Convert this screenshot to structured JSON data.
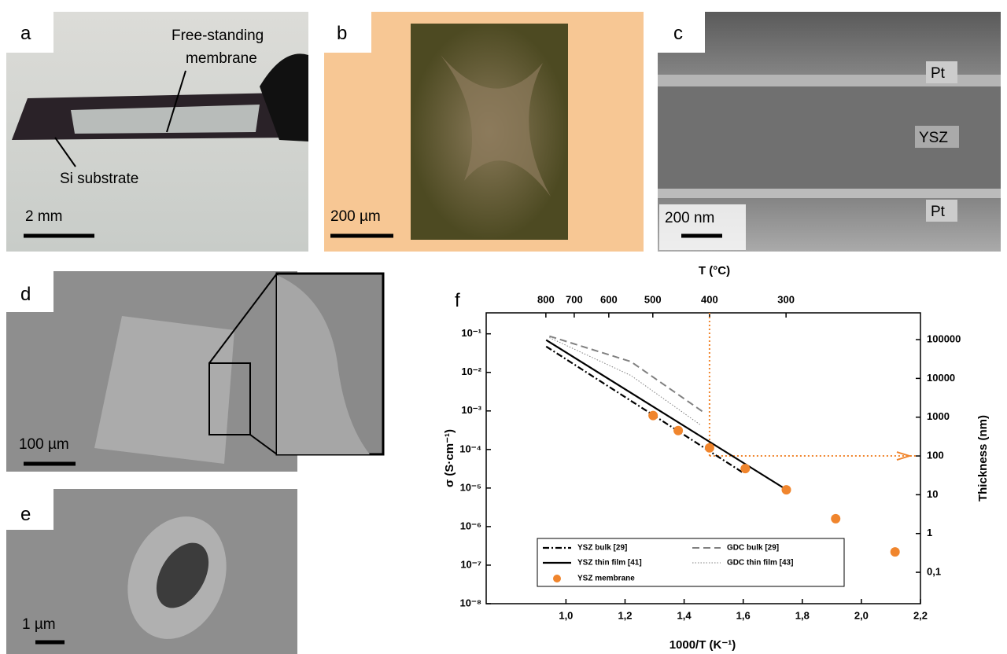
{
  "panels": {
    "a": {
      "label": "a",
      "membrane": [
        "Free-standing",
        "membrane"
      ],
      "substrate": "Si substrate",
      "scale": "2 mm"
    },
    "b": {
      "label": "b",
      "scale": "200 µm"
    },
    "c": {
      "label": "c",
      "top": "Pt",
      "middle": "YSZ",
      "bottom": "Pt",
      "scale": "200 nm"
    },
    "d": {
      "label": "d",
      "scale": "100 µm"
    },
    "e": {
      "label": "e",
      "scale": "1 µm"
    },
    "f": {
      "label": "f"
    }
  },
  "chart_data": {
    "type": "line",
    "xlabel": "1000/T (K⁻¹)",
    "ylabel": "σ (S·cm⁻¹)",
    "y2label": "Thickness (nm)",
    "x2label": "T (°C)",
    "xlim": [
      0.73,
      2.2
    ],
    "xticks": [
      {
        "value": 1.0,
        "label": "1,0"
      },
      {
        "value": 1.2,
        "label": "1,2"
      },
      {
        "value": 1.4,
        "label": "1,4"
      },
      {
        "value": 1.6,
        "label": "1,6"
      },
      {
        "value": 1.8,
        "label": "1,8"
      },
      {
        "value": 2.0,
        "label": "2,0"
      },
      {
        "value": 2.2,
        "label": "2,2"
      }
    ],
    "x2ticks": [
      {
        "value": 0.932,
        "label": "800"
      },
      {
        "value": 1.028,
        "label": "700"
      },
      {
        "value": 1.145,
        "label": "600"
      },
      {
        "value": 1.294,
        "label": "500"
      },
      {
        "value": 1.486,
        "label": "400"
      },
      {
        "value": 1.745,
        "label": "300"
      }
    ],
    "ylog": true,
    "ylim": [
      1e-08,
      0.35
    ],
    "yticks": [
      {
        "value": 0.1,
        "label": "10⁻¹"
      },
      {
        "value": 0.01,
        "label": "10⁻²"
      },
      {
        "value": 0.001,
        "label": "10⁻³"
      },
      {
        "value": 0.0001,
        "label": "10⁻⁴"
      },
      {
        "value": 1e-05,
        "label": "10⁻⁵"
      },
      {
        "value": 1e-06,
        "label": "10⁻⁶"
      },
      {
        "value": 1e-07,
        "label": "10⁻⁷"
      },
      {
        "value": 1e-08,
        "label": "10⁻⁸"
      }
    ],
    "y2log": true,
    "y2lim": [
      0.0155,
      490000
    ],
    "y2ticks": [
      100000,
      10000,
      1000,
      100,
      10,
      1,
      {
        "value": 0.1,
        "label": "0,1"
      }
    ],
    "guide": {
      "x": 1.486,
      "y2": 100,
      "color": "#f0852d"
    },
    "series": [
      {
        "name": "YSZ bulk [29]",
        "color": "#000000",
        "style": "dashdot",
        "x": [
          0.933,
          1.596
        ],
        "values": [
          0.047,
          2.6e-05
        ]
      },
      {
        "name": "GDC bulk [29]",
        "color": "#808080",
        "style": "dashed",
        "x": [
          0.944,
          1.22,
          1.467
        ],
        "values": [
          0.087,
          0.019,
          0.00091
        ]
      },
      {
        "name": "YSZ thin film [41]",
        "color": "#000000",
        "style": "solid",
        "x": [
          0.933,
          1.746
        ],
        "values": [
          0.069,
          9.1e-06
        ]
      },
      {
        "name": "GDC thin film [43]",
        "color": "#808080",
        "style": "dotted",
        "x": [
          0.944,
          1.22,
          1.456
        ],
        "values": [
          0.08,
          0.0083,
          0.00043
        ]
      },
      {
        "name": "YSZ membrane",
        "color": "#f0852d",
        "style": "marker",
        "x": [
          1.295,
          1.38,
          1.486,
          1.607,
          1.746,
          1.913,
          2.114
        ],
        "values": [
          0.00076,
          0.00031,
          0.00011,
          3.2e-05,
          9e-06,
          1.6e-06,
          2.2e-07
        ]
      }
    ]
  }
}
